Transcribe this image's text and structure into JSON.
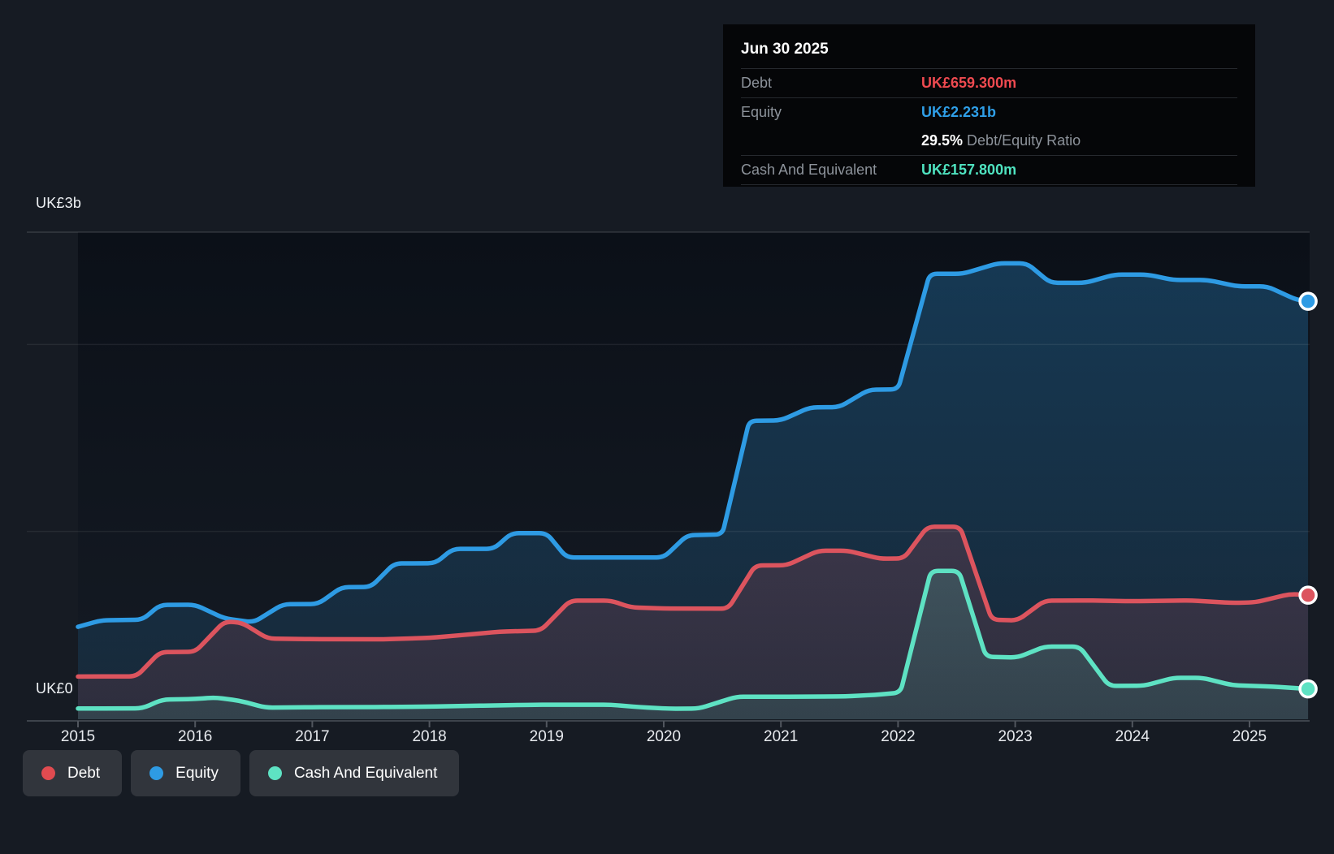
{
  "tooltip": {
    "date": "Jun 30 2025",
    "debt_label": "Debt",
    "debt_value": "UK£659.300m",
    "equity_label": "Equity",
    "equity_value": "UK£2.231b",
    "ratio_value": "29.5%",
    "ratio_label": " Debt/Equity Ratio",
    "cash_label": "Cash And Equivalent",
    "cash_value": "UK£157.800m"
  },
  "axis": {
    "y_max_label": "UK£3b",
    "y_zero_label": "UK£0",
    "x_tick_labels": [
      "2015",
      "2016",
      "2017",
      "2018",
      "2019",
      "2020",
      "2021",
      "2022",
      "2023",
      "2024",
      "2025"
    ]
  },
  "legend": {
    "items": [
      {
        "label": "Debt",
        "color": "#e04b50"
      },
      {
        "label": "Equity",
        "color": "#2e9be4"
      },
      {
        "label": "Cash And Equivalent",
        "color": "#5ee2c3"
      }
    ]
  },
  "colors": {
    "background": "#161b23",
    "tooltip_bg": "#050608",
    "debt_text": "#ef4a50",
    "equity_text": "#2f9fe8",
    "cash_text": "#4fe3c0",
    "grid": "rgba(255,255,255,0.07)",
    "plot_top_border": "rgba(255,255,255,0.14)",
    "axis_line": "#3d434b"
  },
  "chart_data": {
    "type": "area",
    "title": "Debt to Equity History (UK£, billions)",
    "unit": "UK£ millions",
    "x_unit": "decimal year",
    "x_range": [
      2015.0,
      2025.5
    ],
    "ylim": [
      0,
      3000
    ],
    "y_gridline_values": [
      1000,
      2000
    ],
    "y_axis_max_label_value": 3000,
    "x_tick_years": [
      2015,
      2016,
      2017,
      2018,
      2019,
      2020,
      2021,
      2022,
      2023,
      2024,
      2025
    ],
    "legend_position": "bottom-left",
    "latest": {
      "date": "Jun 30 2025",
      "debt_m": 659.3,
      "equity_m": 2231,
      "cash_m": 157.8,
      "debt_equity_ratio_pct": 29.5
    },
    "series": [
      {
        "name": "Equity",
        "color": "#2e9be4",
        "points": [
          [
            2015.0,
            490
          ],
          [
            2015.2,
            525
          ],
          [
            2015.55,
            528
          ],
          [
            2015.7,
            607
          ],
          [
            2016.0,
            608
          ],
          [
            2016.25,
            535
          ],
          [
            2016.5,
            514
          ],
          [
            2016.75,
            611
          ],
          [
            2017.05,
            612
          ],
          [
            2017.25,
            702
          ],
          [
            2017.5,
            703
          ],
          [
            2017.7,
            829
          ],
          [
            2018.05,
            830
          ],
          [
            2018.2,
            907
          ],
          [
            2018.55,
            907
          ],
          [
            2018.7,
            991
          ],
          [
            2019.0,
            991
          ],
          [
            2019.17,
            861
          ],
          [
            2020.0,
            861
          ],
          [
            2020.2,
            980
          ],
          [
            2020.5,
            984
          ],
          [
            2020.73,
            1592
          ],
          [
            2021.0,
            1594
          ],
          [
            2021.25,
            1664
          ],
          [
            2021.5,
            1665
          ],
          [
            2021.75,
            1758
          ],
          [
            2022.0,
            1760
          ],
          [
            2022.27,
            2378
          ],
          [
            2022.55,
            2378
          ],
          [
            2022.85,
            2434
          ],
          [
            2023.1,
            2434
          ],
          [
            2023.3,
            2330
          ],
          [
            2023.6,
            2330
          ],
          [
            2023.85,
            2374
          ],
          [
            2024.13,
            2374
          ],
          [
            2024.35,
            2345
          ],
          [
            2024.64,
            2345
          ],
          [
            2024.9,
            2311
          ],
          [
            2025.15,
            2311
          ],
          [
            2025.4,
            2239
          ],
          [
            2025.5,
            2231
          ]
        ]
      },
      {
        "name": "Debt",
        "color": "#dc545e",
        "points": [
          [
            2015.0,
            224
          ],
          [
            2015.5,
            225
          ],
          [
            2015.7,
            355
          ],
          [
            2016.0,
            356
          ],
          [
            2016.25,
            519
          ],
          [
            2016.4,
            512
          ],
          [
            2016.62,
            427
          ],
          [
            2017.0,
            424
          ],
          [
            2017.6,
            423
          ],
          [
            2018.0,
            431
          ],
          [
            2018.3,
            447
          ],
          [
            2018.6,
            464
          ],
          [
            2018.95,
            470
          ],
          [
            2019.2,
            630
          ],
          [
            2019.55,
            630
          ],
          [
            2019.72,
            594
          ],
          [
            2020.0,
            588
          ],
          [
            2020.55,
            587
          ],
          [
            2020.78,
            818
          ],
          [
            2021.05,
            819
          ],
          [
            2021.32,
            897
          ],
          [
            2021.57,
            897
          ],
          [
            2021.85,
            854
          ],
          [
            2022.05,
            856
          ],
          [
            2022.25,
            1025
          ],
          [
            2022.53,
            1025
          ],
          [
            2022.8,
            528
          ],
          [
            2023.02,
            524
          ],
          [
            2023.25,
            630
          ],
          [
            2023.6,
            631
          ],
          [
            2024.0,
            627
          ],
          [
            2024.5,
            631
          ],
          [
            2024.85,
            618
          ],
          [
            2025.05,
            621
          ],
          [
            2025.35,
            666
          ],
          [
            2025.5,
            659.3
          ]
        ]
      },
      {
        "name": "Cash And Equivalent",
        "color": "#5ee2c3",
        "points": [
          [
            2015.0,
            53
          ],
          [
            2015.55,
            54
          ],
          [
            2015.72,
            101
          ],
          [
            2016.0,
            104
          ],
          [
            2016.17,
            112
          ],
          [
            2016.38,
            95
          ],
          [
            2016.6,
            58
          ],
          [
            2017.0,
            60
          ],
          [
            2017.6,
            61
          ],
          [
            2018.0,
            63
          ],
          [
            2018.4,
            68
          ],
          [
            2018.9,
            73
          ],
          [
            2019.55,
            73
          ],
          [
            2019.8,
            60
          ],
          [
            2020.05,
            52
          ],
          [
            2020.3,
            53
          ],
          [
            2020.62,
            116
          ],
          [
            2021.0,
            116
          ],
          [
            2021.55,
            118
          ],
          [
            2021.8,
            126
          ],
          [
            2022.02,
            138
          ],
          [
            2022.28,
            789
          ],
          [
            2022.52,
            789
          ],
          [
            2022.75,
            330
          ],
          [
            2023.02,
            326
          ],
          [
            2023.25,
            384
          ],
          [
            2023.55,
            384
          ],
          [
            2023.8,
            174
          ],
          [
            2024.1,
            175
          ],
          [
            2024.35,
            217
          ],
          [
            2024.6,
            217
          ],
          [
            2024.85,
            178
          ],
          [
            2025.2,
            170
          ],
          [
            2025.5,
            157.8
          ]
        ]
      }
    ]
  }
}
